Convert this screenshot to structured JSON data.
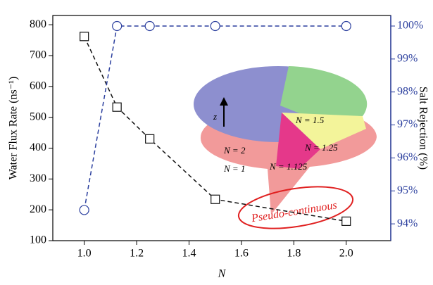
{
  "chart_data": {
    "type": "line",
    "x_label": "N",
    "y_label": "Water Flux Rate (ns⁻¹)",
    "y2_label": "Salt Rejection (%)",
    "x": [
      1.0,
      1.125,
      1.25,
      1.5,
      2.0
    ],
    "series": [
      {
        "color": "#111111",
        "marker": "square",
        "line_style": "dashed",
        "values": [
          762,
          533,
          430,
          234,
          163
        ]
      },
      {
        "color": "#2b3f9e",
        "marker": "circle",
        "line_style": "dashed",
        "axis": "y2",
        "values": [
          94.42,
          100,
          100,
          100,
          100
        ]
      }
    ],
    "xlim": [
      0.88,
      2.17
    ],
    "xticks": [
      {
        "value": 1.0,
        "label": "1.0"
      },
      {
        "value": 1.2,
        "label": "1.2"
      },
      {
        "value": 1.4,
        "label": "1.4"
      },
      {
        "value": 1.6,
        "label": "1.6"
      },
      {
        "value": 1.8,
        "label": "1.8"
      },
      {
        "value": 2.0,
        "label": "2.0"
      }
    ],
    "ylim": [
      100,
      830
    ],
    "yticks": [
      100,
      200,
      300,
      400,
      500,
      600,
      700,
      800
    ],
    "y2lim": [
      93.49,
      100.32
    ],
    "y2ticks": [
      {
        "value": 94,
        "label": "94%"
      },
      {
        "value": 95,
        "label": "95%"
      },
      {
        "value": 96,
        "label": "96%"
      },
      {
        "value": 97,
        "label": "97%"
      },
      {
        "value": 98,
        "label": "98%"
      },
      {
        "value": 99,
        "label": "99%"
      },
      {
        "value": 100,
        "label": "100%"
      }
    ],
    "y2_color": "#2b3f9e",
    "grid": false,
    "annotation": "Pseudo-continuous",
    "inset_axis_label": "z",
    "inset_labels": [
      "N = 1.5",
      "N = 1.25",
      "N = 2",
      "N = 1",
      "N = 1.125"
    ]
  }
}
